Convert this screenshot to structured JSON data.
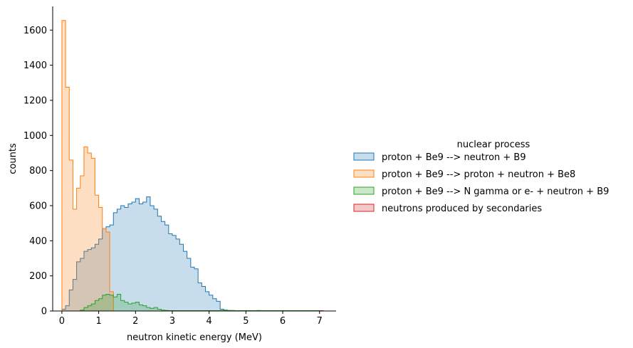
{
  "chart_data": {
    "type": "histogram",
    "xlabel": "neutron kinetic energy (MeV)",
    "ylabel": "counts",
    "xlim": [
      -0.25,
      7.45
    ],
    "ylim": [
      0,
      1735
    ],
    "xticks": [
      0,
      1,
      2,
      3,
      4,
      5,
      6,
      7
    ],
    "yticks": [
      0,
      200,
      400,
      600,
      800,
      1000,
      1200,
      1400,
      1600
    ],
    "grid": false,
    "legend": {
      "title": "nuclear process",
      "placement": "right"
    },
    "bin_width": 0.1,
    "bin_start": 0.0,
    "series": [
      {
        "name": "proton + Be9 --> neutron + B9",
        "color": "#1f77b4",
        "values": [
          10,
          30,
          120,
          180,
          280,
          300,
          340,
          350,
          360,
          380,
          410,
          470,
          480,
          490,
          560,
          580,
          600,
          590,
          610,
          620,
          640,
          610,
          620,
          650,
          600,
          580,
          540,
          510,
          490,
          440,
          430,
          410,
          380,
          340,
          300,
          250,
          240,
          160,
          140,
          110,
          90,
          70,
          55,
          10,
          5,
          3,
          3,
          2,
          2,
          1
        ]
      },
      {
        "name": "proton + Be9 --> proton + neutron + Be8",
        "color": "#ff7f0e",
        "values": [
          1655,
          1275,
          860,
          580,
          700,
          770,
          935,
          900,
          870,
          660,
          590,
          470,
          450,
          110,
          0,
          0,
          0,
          0,
          0,
          0,
          0,
          0,
          0,
          0,
          0,
          0,
          0,
          0,
          0,
          0,
          0,
          0,
          0,
          0,
          0,
          0,
          0,
          0,
          0,
          0,
          0,
          0,
          0,
          0,
          0,
          0,
          0,
          0,
          0,
          0,
          0,
          0,
          0,
          0,
          0,
          0,
          0,
          0,
          0,
          0,
          0,
          0,
          0,
          0,
          0,
          0,
          0,
          0,
          0,
          0,
          0
        ]
      },
      {
        "name": "proton + Be9 --> N gamma or e- + neutron + B9",
        "color": "#2ca02c",
        "values": [
          0,
          0,
          0,
          0,
          0,
          5,
          20,
          30,
          40,
          60,
          70,
          90,
          95,
          90,
          80,
          95,
          60,
          50,
          40,
          45,
          50,
          35,
          30,
          20,
          15,
          20,
          10,
          5,
          3,
          2,
          2,
          2,
          2,
          2,
          2,
          2,
          2,
          2,
          2,
          2,
          2,
          2,
          2,
          3,
          5,
          3,
          2,
          2,
          2,
          2,
          2,
          2,
          2,
          3,
          2,
          2,
          2,
          2,
          2,
          2,
          2,
          2,
          2,
          2,
          2,
          2,
          2,
          2,
          2,
          2,
          2
        ]
      },
      {
        "name": "neutrons produced by secondaries",
        "color": "#d62728",
        "values": [
          0,
          0,
          0,
          0,
          0,
          0,
          0,
          0,
          0,
          0,
          0,
          0,
          0,
          0,
          0,
          0,
          0,
          0,
          0,
          0,
          0,
          0,
          0,
          0,
          0,
          0,
          0,
          0,
          0,
          0,
          0,
          0,
          0,
          0,
          0,
          0,
          0,
          0,
          0,
          0,
          0,
          0,
          0,
          0,
          0,
          0,
          0,
          0,
          0,
          0,
          0,
          0,
          0,
          0,
          0,
          0,
          0,
          0,
          0,
          0,
          0,
          0,
          0,
          0,
          0,
          0,
          0,
          0,
          0,
          0,
          2
        ]
      }
    ]
  }
}
